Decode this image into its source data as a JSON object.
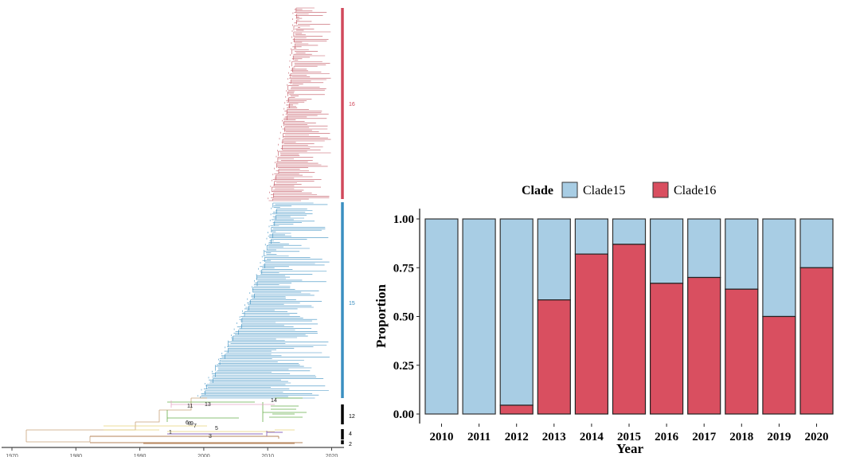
{
  "chart_data": [
    {
      "type": "tree",
      "title": "",
      "xlabel": "",
      "x_ticks": [
        1970,
        1980,
        1990,
        2000,
        2010,
        2020
      ],
      "xlim": [
        1969,
        2022
      ],
      "clade_bars": [
        {
          "label": "16",
          "color": "#d1495b"
        },
        {
          "label": "15",
          "color": "#3a8fc1"
        },
        {
          "label": "12",
          "color": "#000000"
        },
        {
          "label": "4",
          "color": "#000000"
        },
        {
          "label": "2",
          "color": "#000000"
        }
      ],
      "node_labels": [
        "14",
        "11",
        "13",
        "1",
        "3",
        "5",
        "6",
        "8",
        "9",
        "7"
      ]
    },
    {
      "type": "bar",
      "stacked": true,
      "categories": [
        "2010",
        "2011",
        "2012",
        "2013",
        "2014",
        "2015",
        "2016",
        "2017",
        "2018",
        "2019",
        "2020"
      ],
      "series": [
        {
          "name": "Clade15",
          "color": "#a8cde4",
          "values": [
            1.0,
            1.0,
            0.955,
            0.415,
            0.18,
            0.13,
            0.33,
            0.3,
            0.36,
            0.5,
            0.25
          ]
        },
        {
          "name": "Clade16",
          "color": "#d94f60",
          "values": [
            0.0,
            0.0,
            0.045,
            0.585,
            0.82,
            0.87,
            0.67,
            0.7,
            0.64,
            0.5,
            0.75
          ]
        }
      ],
      "legend_title": "Clade",
      "legend_position": "top",
      "xlabel": "Year",
      "ylabel": "Proportion",
      "ylim": [
        0,
        1
      ],
      "y_ticks": [
        "0.00",
        "0.25",
        "0.50",
        "0.75",
        "1.00"
      ],
      "grid": false
    }
  ]
}
